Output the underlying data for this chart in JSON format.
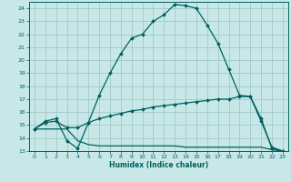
{
  "title": "",
  "xlabel": "Humidex (Indice chaleur)",
  "bg_color": "#c8e8e8",
  "grid_color": "#a0c8c8",
  "line_color": "#006060",
  "xlim": [
    -0.5,
    23.5
  ],
  "ylim": [
    13,
    24.5
  ],
  "yticks": [
    13,
    14,
    15,
    16,
    17,
    18,
    19,
    20,
    21,
    22,
    23,
    24
  ],
  "xticks": [
    0,
    1,
    2,
    3,
    4,
    5,
    6,
    7,
    8,
    9,
    10,
    11,
    12,
    13,
    14,
    15,
    16,
    17,
    18,
    19,
    20,
    21,
    22,
    23
  ],
  "line1_x": [
    0,
    1,
    2,
    3,
    4,
    5,
    6,
    7,
    8,
    9,
    10,
    11,
    12,
    13,
    14,
    15,
    16,
    17,
    18,
    19,
    20,
    21,
    22,
    23
  ],
  "line1_y": [
    14.7,
    15.3,
    15.5,
    13.8,
    13.2,
    15.2,
    17.3,
    19.0,
    20.5,
    21.7,
    22.0,
    23.0,
    23.5,
    24.3,
    24.2,
    24.0,
    22.7,
    21.3,
    19.3,
    17.3,
    17.2,
    15.3,
    13.3,
    13.0
  ],
  "line2_x": [
    0,
    1,
    2,
    3,
    4,
    5,
    6,
    7,
    8,
    9,
    10,
    11,
    12,
    13,
    14,
    15,
    16,
    17,
    18,
    19,
    20,
    21,
    22,
    23
  ],
  "line2_y": [
    14.7,
    15.2,
    15.3,
    14.8,
    14.8,
    15.2,
    15.5,
    15.7,
    15.9,
    16.1,
    16.2,
    16.4,
    16.5,
    16.6,
    16.7,
    16.8,
    16.9,
    17.0,
    17.0,
    17.2,
    17.2,
    15.5,
    13.2,
    13.0
  ],
  "line3_x": [
    0,
    1,
    2,
    3,
    4,
    5,
    6,
    7,
    8,
    9,
    10,
    11,
    12,
    13,
    14,
    15,
    16,
    17,
    18,
    19,
    20,
    21,
    22,
    23
  ],
  "line3_y": [
    14.7,
    14.7,
    14.7,
    14.7,
    13.8,
    13.5,
    13.4,
    13.4,
    13.4,
    13.4,
    13.4,
    13.4,
    13.4,
    13.4,
    13.3,
    13.3,
    13.3,
    13.3,
    13.3,
    13.3,
    13.3,
    13.3,
    13.1,
    13.0
  ]
}
